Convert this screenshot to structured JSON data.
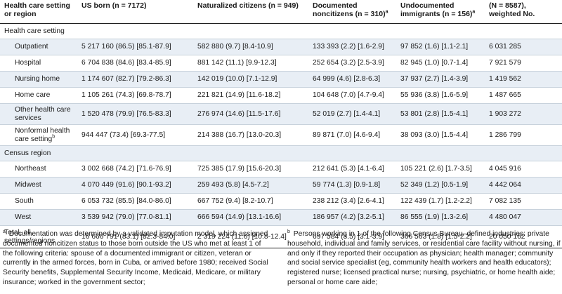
{
  "header": {
    "col0": "Health care setting or region",
    "col1": "US born (n = 7172)",
    "col2": "Naturalized citizens (n = 949)",
    "col3": "Documented noncitizens (n = 310)",
    "col3_sup": "a",
    "col4": "Undocumented immigrants (n = 156)",
    "col4_sup": "a",
    "col5": "(N = 8587), weighted No."
  },
  "sections": {
    "health_care_setting": "Health care setting",
    "census_region": "Census region"
  },
  "rows_setting": [
    {
      "label": "Outpatient",
      "us_born": "5 217 160 (86.5) [85.1-87.9]",
      "naturalized": "582 880 (9.7) [8.4-10.9]",
      "documented": "133 393 (2.2) [1.6-2.9]",
      "undocumented": "97 852 (1.6) [1.1-2.1]",
      "total": "6 031 285"
    },
    {
      "label": "Hospital",
      "us_born": "6 704 838 (84.6) [83.4-85.9]",
      "naturalized": "881 142 (11.1) [9.9-12.3]",
      "documented": "252 654 (3.2) [2.5-3.9]",
      "undocumented": "82 945 (1.0) [0.7-1.4]",
      "total": "7 921 579"
    },
    {
      "label": "Nursing home",
      "us_born": "1 174 607 (82.7) [79.2-86.3]",
      "naturalized": "142 019 (10.0) [7.1-12.9]",
      "documented": "64 999 (4.6) [2.8-6.3]",
      "undocumented": "37 937 (2.7) [1.4-3.9]",
      "total": "1 419 562"
    },
    {
      "label": "Home care",
      "us_born": "1 105 261 (74.3) [69.8-78.7]",
      "naturalized": "221 821 (14.9) [11.6-18.2]",
      "documented": "104 648 (7.0) [4.7-9.4]",
      "undocumented": "55 936 (3.8) [1.6-5.9]",
      "total": "1 487 665"
    },
    {
      "label": "Other health care services",
      "us_born": "1 520 478 (79.9) [76.5-83.3]",
      "naturalized": "276 974 (14.6) [11.5-17.6]",
      "documented": "52 019 (2.7) [1.4-4.1]",
      "undocumented": "53 801 (2.8) [1.5-4.1]",
      "total": "1 903 272"
    },
    {
      "label": "Nonformal health care setting",
      "label_sup": "b",
      "us_born": "944 447 (73.4) [69.3-77.5]",
      "naturalized": "214 388 (16.7) [13.0-20.3]",
      "documented": "89 871 (7.0) [4.6-9.4]",
      "undocumented": "38 093 (3.0) [1.5-4.4]",
      "total": "1 286 799"
    }
  ],
  "rows_region": [
    {
      "label": "Northeast",
      "us_born": "3 002 668 (74.2) [71.6-76.9]",
      "naturalized": "725 385 (17.9) [15.6-20.3]",
      "documented": "212 641 (5.3) [4.1-6.4]",
      "undocumented": "105 221 (2.6) [1.7-3.5]",
      "total": "4 045 916"
    },
    {
      "label": "Midwest",
      "us_born": "4 070 449 (91.6) [90.1-93.2]",
      "naturalized": "259 493 (5.8) [4.5-7.2]",
      "documented": "59 774 (1.3) [0.9-1.8]",
      "undocumented": "52 349 (1.2) [0.5-1.9]",
      "total": "4 442 064"
    },
    {
      "label": "South",
      "us_born": "6 053 732 (85.5) [84.0-86.0]",
      "naturalized": "667 752 (9.4) [8.2-10.7]",
      "documented": "238 212 (3.4) [2.6-4.1]",
      "undocumented": "122 439 (1.7) [1.2-2.2]",
      "total": "7 082 135"
    },
    {
      "label": "West",
      "us_born": "3 539 942 (79.0) [77.0-81.1]",
      "naturalized": "666 594 (14.9) [13.1-16.6]",
      "documented": "186 957 (4.2) [3.2-5.1]",
      "undocumented": "86 555 (1.9) [1.3-2.6]",
      "total": "4 480 047"
    }
  ],
  "total_row": {
    "label": "Total, all settings/regions",
    "us_born": "16 666 791 (83.1) [82.3-84.0]",
    "naturalized": "2 319 224 (11.6) [10.8-12.4]",
    "documented": "697 584 (3.5) [3.1-3.9]",
    "undocumented": "366 563 (1.8) [1.5-2.2]",
    "total": "20 050 162"
  },
  "footnotes": {
    "a_mark": "a",
    "a_text": "Documentation was determined by a validated imputation model, which assigned documented noncitizen status to those born outside the US who met at least 1 of the following criteria: spouse of a documented immigrant or citizen, veteran or currently in the armed forces, born in Cuba, or arrived before 1980; received Social Security benefits, Supplemental Security Income, Medicaid, Medicare, or military insurance; worked in the government sector;",
    "b_mark": "b",
    "b_text": "Persons working in 1 of the following Census Bureau–defined industries: private household, individual and family services, or residential care facility without nursing, if and only if they reported their occupation as physician; health manager; community and social service specialist (eg, community health workers and health educators); registered nurse; licensed practical nurse; nursing, psychiatric, or home health aide; personal or home care aide;"
  }
}
